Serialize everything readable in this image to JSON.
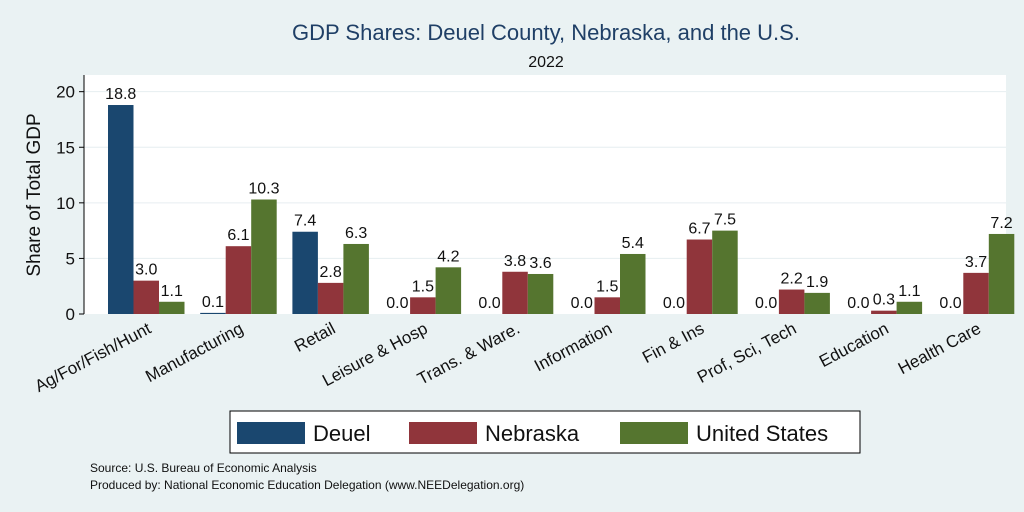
{
  "chart_data": {
    "type": "bar",
    "title": "GDP Shares: Deuel County, Nebraska, and the U.S.",
    "subtitle": "2022",
    "ylabel": "Share of Total GDP",
    "xlabel": "",
    "ylim": [
      0,
      21.5
    ],
    "yticks": [
      0,
      5,
      10,
      15,
      20
    ],
    "grid": true,
    "legend_position": "bottom",
    "categories": [
      "Ag/For/Fish/Hunt",
      "Manufacturing",
      "Retail",
      "Leisure & Hosp",
      "Trans. & Ware.",
      "Information",
      "Fin & Ins",
      "Prof, Sci, Tech",
      "Education",
      "Health Care"
    ],
    "series": [
      {
        "name": "Deuel",
        "color": "#1a476f",
        "values": [
          18.8,
          0.1,
          7.4,
          0.0,
          0.0,
          0.0,
          0.0,
          0.0,
          0.0,
          0.0
        ],
        "labels": [
          "18.8",
          "0.1",
          "7.4",
          "0.0",
          "0.0",
          "0.0",
          "0.0",
          "0.0",
          "0.0",
          "0.0"
        ]
      },
      {
        "name": "Nebraska",
        "color": "#90353b",
        "values": [
          3.0,
          6.1,
          2.8,
          1.5,
          3.8,
          1.5,
          6.7,
          2.2,
          0.3,
          3.7
        ],
        "labels": [
          "3.0",
          "6.1",
          "2.8",
          "1.5",
          "3.8",
          "1.5",
          "6.7",
          "2.2",
          "0.3",
          "3.7"
        ]
      },
      {
        "name": "United States",
        "color": "#55752f",
        "values": [
          1.1,
          10.3,
          6.3,
          4.2,
          3.6,
          5.4,
          7.5,
          1.9,
          1.1,
          7.2
        ],
        "labels": [
          "1.1",
          "10.3",
          "6.3",
          "4.2",
          "3.6",
          "5.4",
          "7.5",
          "1.9",
          "1.1",
          "7.2"
        ]
      }
    ]
  },
  "notes": {
    "source": "Source: U.S. Bureau of Economic Analysis",
    "produced_by": "Produced by: National Economic Education Delegation (www.NEEDelegation.org)"
  }
}
